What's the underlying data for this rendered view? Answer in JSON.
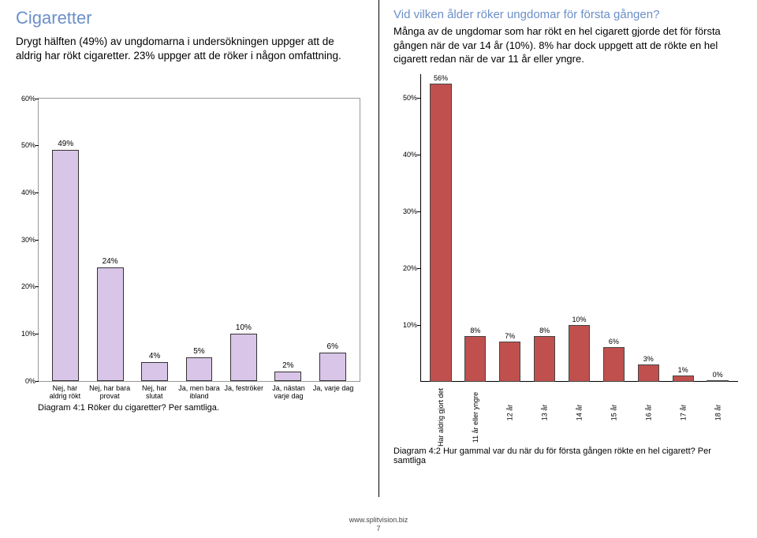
{
  "left": {
    "title": "Cigaretter",
    "intro": "Drygt hälften (49%) av ungdomarna i undersökningen uppger att de aldrig har rökt cigaretter. 23% uppger att de röker i någon omfattning.",
    "chart": {
      "type": "bar",
      "ylim_max": 60,
      "ytick_step": 10,
      "bar_fill": "#d8c5e8",
      "bar_border": "#333333",
      "bars": [
        {
          "value": 49,
          "label": "Nej, har aldrig rökt"
        },
        {
          "value": 24,
          "label": "Nej, har bara provat"
        },
        {
          "value": 4,
          "label": "Nej, har slutat"
        },
        {
          "value": 5,
          "label": "Ja, men bara ibland"
        },
        {
          "value": 10,
          "label": "Ja, feströker"
        },
        {
          "value": 2,
          "label": "Ja, nästan varje dag"
        },
        {
          "value": 6,
          "label": "Ja, varje dag"
        }
      ],
      "caption": "Diagram 4:1 Röker du cigaretter? Per samtliga."
    }
  },
  "right": {
    "title": "Vid vilken ålder röker ungdomar för första gången?",
    "intro": "Många av de ungdomar som har rökt en hel cigarett gjorde det för första gången när de var 14 år (10%). 8% har dock uppgett att de rökte en hel cigarett redan när de var 11 år eller yngre.",
    "chart": {
      "type": "bar",
      "ylim_max": 50,
      "overflow_value": 56,
      "ytick_step": 10,
      "bar_fill": "#c0504d",
      "bar_border": "#444444",
      "bars": [
        {
          "value": 56,
          "label": "Har aldrig gjort det",
          "long": true,
          "overflow": true
        },
        {
          "value": 8,
          "label": "11 år eller yngre",
          "long": true
        },
        {
          "value": 7,
          "label": "12 år"
        },
        {
          "value": 8,
          "label": "13 år"
        },
        {
          "value": 10,
          "label": "14 år"
        },
        {
          "value": 6,
          "label": "15 år"
        },
        {
          "value": 3,
          "label": "16 år"
        },
        {
          "value": 1,
          "label": "17 år"
        },
        {
          "value": 0,
          "label": "18 år"
        }
      ],
      "caption": "Diagram 4:2 Hur gammal var du när du för första gången rökte en hel cigarett? Per samtliga"
    }
  },
  "footer": {
    "url": "www.splitvision.biz",
    "pagenum": "7"
  },
  "colors": {
    "title": "#6b8fc9",
    "text": "#000000",
    "background": "#ffffff"
  }
}
